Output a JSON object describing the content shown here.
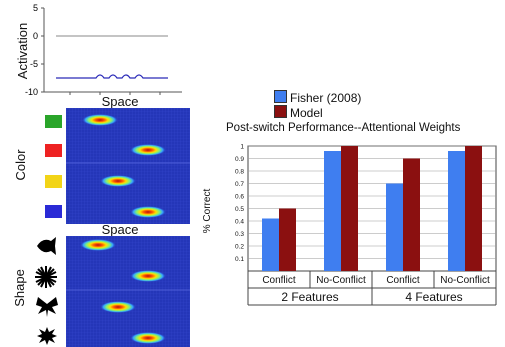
{
  "activation": {
    "ylabel": "Activation",
    "ticks": [
      "5",
      "0",
      "-5",
      "-10"
    ],
    "xlabel": "Space",
    "baseline": 0,
    "field_level": -7.5,
    "ylim": [
      -10,
      5
    ]
  },
  "color_panel": {
    "ylabel": "Color",
    "feature_colors": [
      "#2aa52a",
      "#ee2222",
      "#f2d417",
      "#2a2ad6"
    ],
    "xlabel": "Space"
  },
  "shape_panel": {
    "ylabel": "Shape",
    "shape_icons": [
      "fish-icon",
      "starburst-icon",
      "butterfly-icon",
      "splat-icon"
    ]
  },
  "chart_data": {
    "type": "bar",
    "title": "Post-switch Performance--Attentional Weights",
    "ylabel": "% Correct",
    "ylim": [
      0,
      1
    ],
    "yticks": [
      "0.1",
      "0.2",
      "0.3",
      "0.4",
      "0.5",
      "0.6",
      "0.7",
      "0.8",
      "0.9",
      "1"
    ],
    "categories": [
      "Conflict",
      "No-Conflict",
      "Conflict",
      "No-Conflict"
    ],
    "groups": [
      "2 Features",
      "4 Features"
    ],
    "series": [
      {
        "name": "Fisher (2008)",
        "color": "#3f7ef0",
        "values": [
          0.42,
          0.96,
          0.7,
          0.96
        ]
      },
      {
        "name": "Model",
        "color": "#8b1010",
        "values": [
          0.5,
          1.0,
          0.9,
          1.0
        ]
      }
    ],
    "legend": "top-left"
  }
}
